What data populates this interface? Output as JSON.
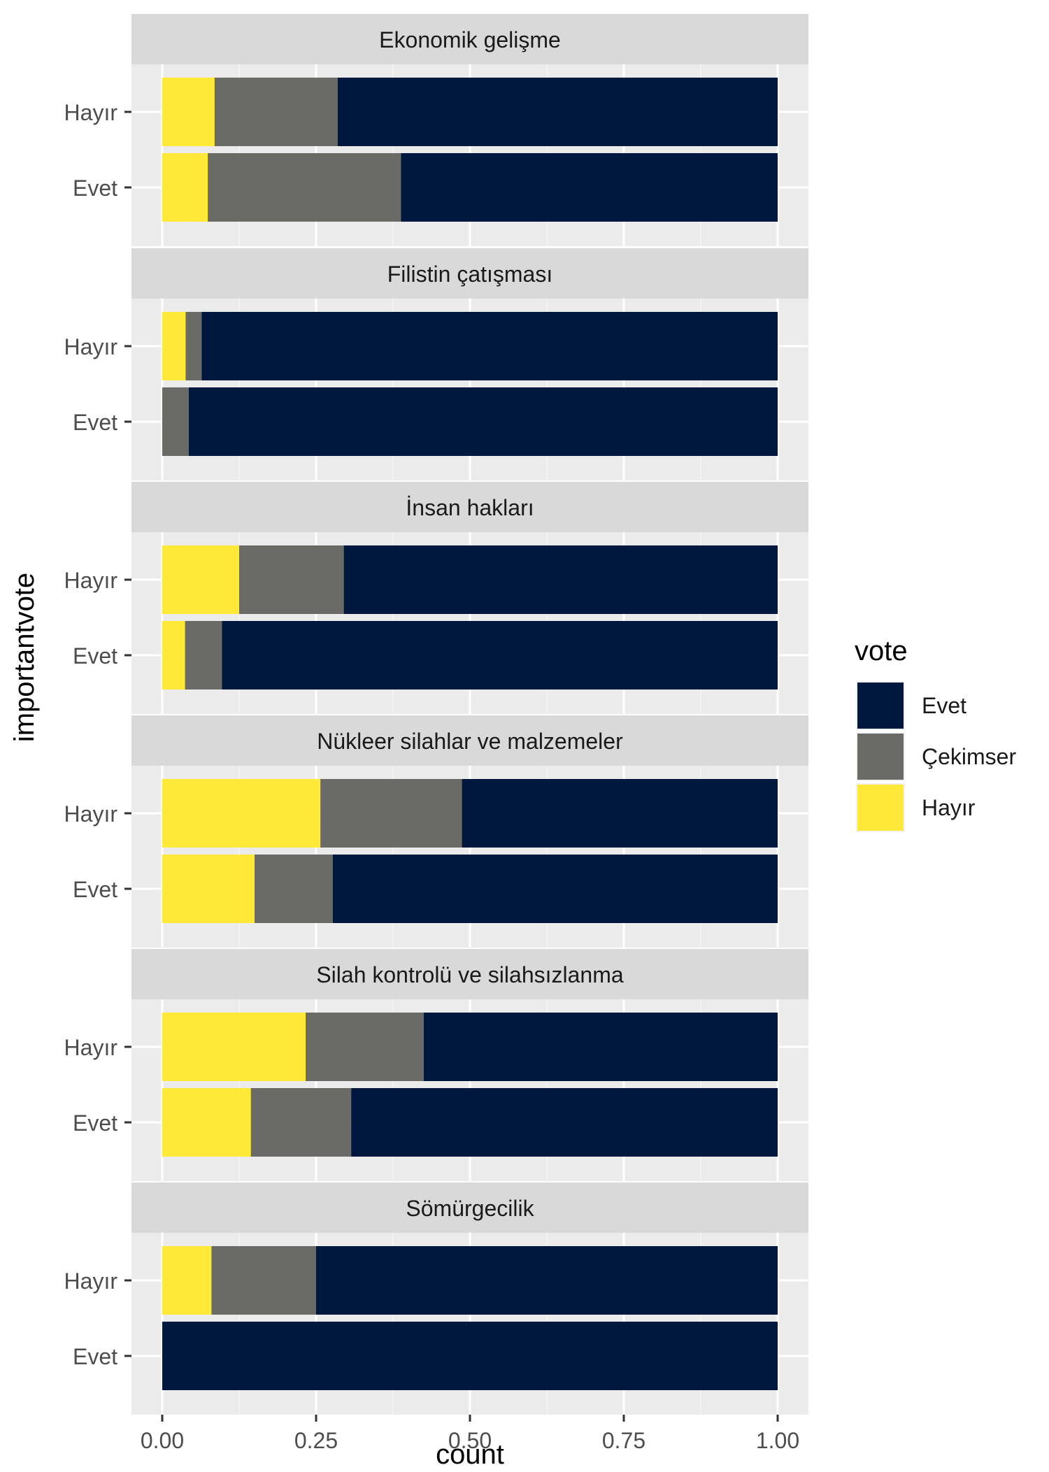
{
  "chart_data": {
    "type": "bar",
    "orientation": "horizontal",
    "stacked": true,
    "position": "fill",
    "xlabel": "count",
    "ylabel": "importantvote",
    "xlim": [
      0,
      1
    ],
    "x_ticks": [
      "0.00",
      "0.25",
      "0.50",
      "0.75",
      "1.00"
    ],
    "categories": [
      "Hayır",
      "Evet"
    ],
    "legend": {
      "title": "vote",
      "position": "right",
      "entries": [
        {
          "label": "Evet",
          "color": "#00183D"
        },
        {
          "label": "Çekimser",
          "color": "#6A6A67"
        },
        {
          "label": "Hayır",
          "color": "#FEE838"
        }
      ]
    },
    "colors": {
      "Hayır": "#FEE838",
      "Çekimser": "#6A6A67",
      "Evet": "#00183D"
    },
    "panels": [
      {
        "title": "Ekonomik gelişme",
        "rows": [
          {
            "category": "Hayır",
            "Hayır": 0.085,
            "Çekimser": 0.2,
            "Evet": 0.715
          },
          {
            "category": "Evet",
            "Hayır": 0.074,
            "Çekimser": 0.314,
            "Evet": 0.612
          }
        ]
      },
      {
        "title": "Filistin çatışması",
        "rows": [
          {
            "category": "Hayır",
            "Hayır": 0.038,
            "Çekimser": 0.026,
            "Evet": 0.936
          },
          {
            "category": "Evet",
            "Hayır": 0.0,
            "Çekimser": 0.043,
            "Evet": 0.957
          }
        ]
      },
      {
        "title": "İnsan hakları",
        "rows": [
          {
            "category": "Hayır",
            "Hayır": 0.125,
            "Çekimser": 0.17,
            "Evet": 0.705
          },
          {
            "category": "Evet",
            "Hayır": 0.037,
            "Çekimser": 0.06,
            "Evet": 0.903
          }
        ]
      },
      {
        "title": "Nükleer silahlar ve malzemeler",
        "rows": [
          {
            "category": "Hayır",
            "Hayır": 0.257,
            "Çekimser": 0.23,
            "Evet": 0.513
          },
          {
            "category": "Evet",
            "Hayır": 0.15,
            "Çekimser": 0.127,
            "Evet": 0.723
          }
        ]
      },
      {
        "title": "Silah kontrolü ve silahsızlanma",
        "rows": [
          {
            "category": "Hayır",
            "Hayır": 0.233,
            "Çekimser": 0.192,
            "Evet": 0.575
          },
          {
            "category": "Evet",
            "Hayır": 0.144,
            "Çekimser": 0.163,
            "Evet": 0.693
          }
        ]
      },
      {
        "title": "Sömürgecilik",
        "rows": [
          {
            "category": "Hayır",
            "Hayır": 0.08,
            "Çekimser": 0.17,
            "Evet": 0.75
          },
          {
            "category": "Evet",
            "Hayır": 0.0,
            "Çekimser": 0.0,
            "Evet": 1.0
          }
        ]
      }
    ]
  }
}
